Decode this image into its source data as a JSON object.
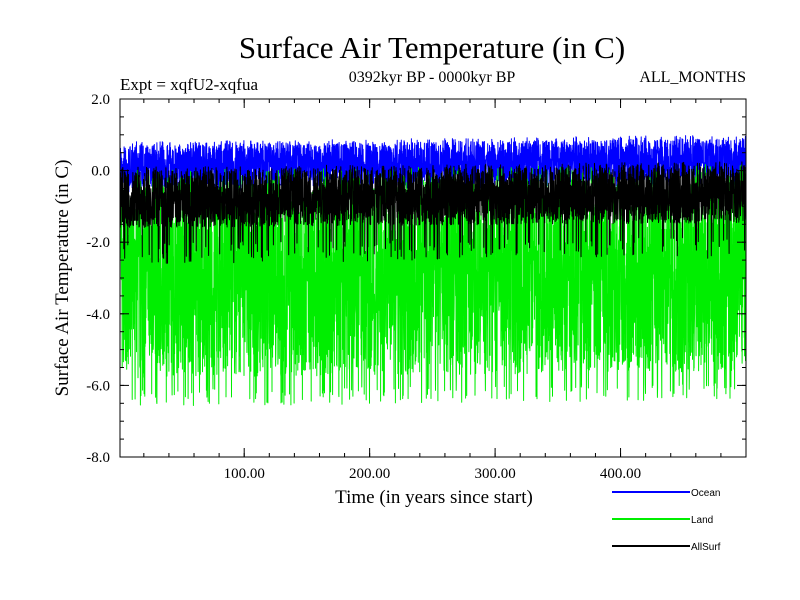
{
  "chart_data": {
    "type": "line",
    "title": "Surface Air Temperature (in C)",
    "subtitle_left": "Expt = xqfU2-xqfua",
    "subtitle_center": "0392kyr BP - 0000kyr BP",
    "subtitle_right": "ALL_MONTHS",
    "xlabel": "Time (in years since start)",
    "ylabel": "Surface Air Temperature (in C)",
    "xlim": [
      1,
      500
    ],
    "ylim": [
      -8.0,
      2.0
    ],
    "xticks": [
      100,
      200,
      300,
      400
    ],
    "xtick_labels": [
      "100.00",
      "200.00",
      "300.00",
      "400.00"
    ],
    "yticks": [
      2.0,
      0.0,
      -2.0,
      -4.0,
      -6.0,
      -8.0
    ],
    "ytick_labels": [
      "2.0",
      "0.0",
      "-2.0",
      "-4.0",
      "-6.0",
      "-8.0"
    ],
    "legend_position": "bottom-right",
    "series": [
      {
        "name": "Ocean",
        "color": "#0000ff",
        "start_year": 1,
        "end_year": 500,
        "n_points": 500,
        "mean_start": 0.0,
        "mean_end": 0.2,
        "band_low": -0.5,
        "band_high": 0.7,
        "extreme_min": -0.6,
        "extreme_max": 0.8
      },
      {
        "name": "Land",
        "color": "#00ee00",
        "start_year": 1,
        "end_year": 500,
        "n_points": 500,
        "mean_start": -3.6,
        "mean_end": -3.4,
        "band_low": -5.8,
        "band_high": -0.3,
        "extreme_min": -6.6,
        "extreme_max": 0.0
      },
      {
        "name": "AllSurf",
        "color": "#000000",
        "start_year": 1,
        "end_year": 500,
        "n_points": 500,
        "mean_start": -0.75,
        "mean_end": -0.6,
        "band_low": -1.6,
        "band_high": 0.0,
        "extreme_min": -2.6,
        "extreme_max": 0.1
      }
    ]
  }
}
